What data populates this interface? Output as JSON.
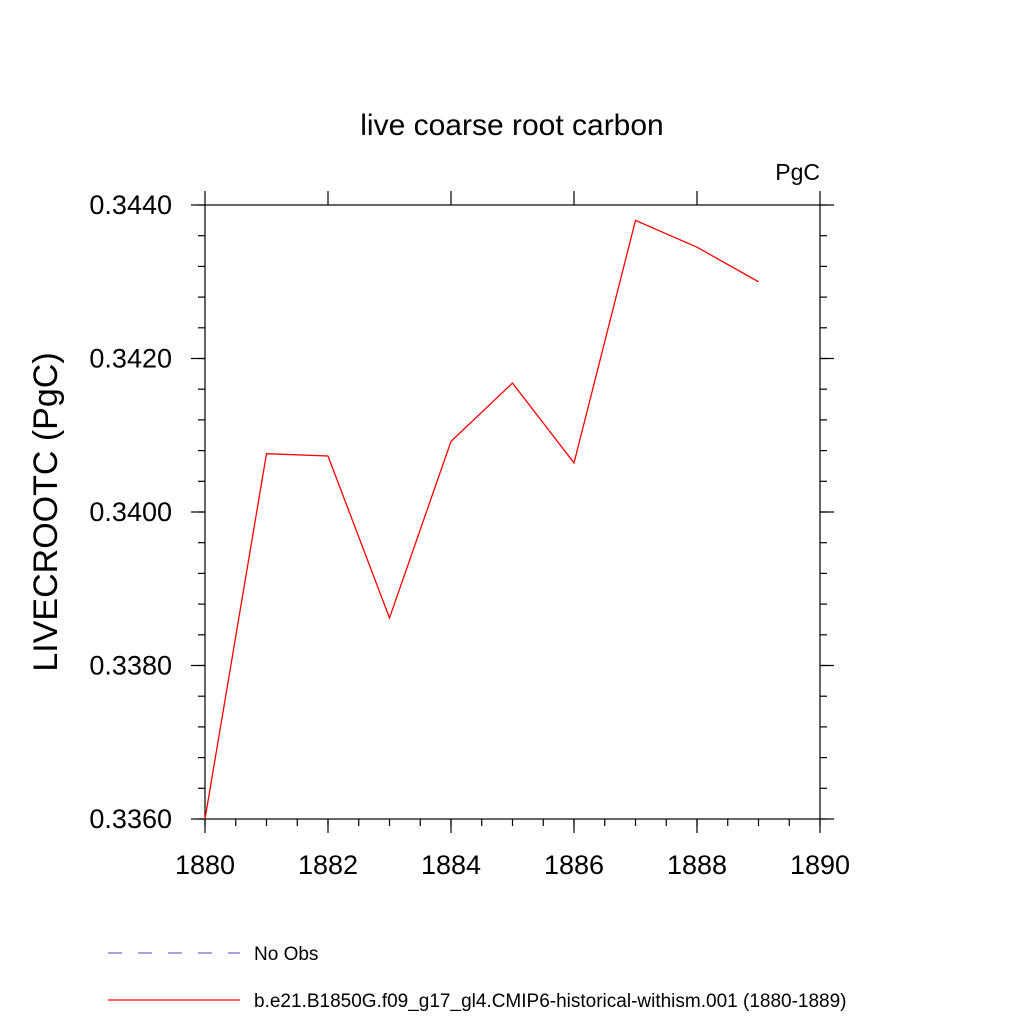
{
  "chart_data": {
    "type": "line",
    "title": "live coarse root carbon",
    "units_label": "PgC",
    "xlabel": "",
    "ylabel": "LIVECROOTC  (PgC)",
    "xlim": [
      1880,
      1890
    ],
    "ylim": [
      0.336,
      0.344
    ],
    "x_ticks": [
      1880,
      1882,
      1884,
      1886,
      1888,
      1890
    ],
    "x_tick_labels": [
      "1880",
      "1882",
      "1884",
      "1886",
      "1888",
      "1890"
    ],
    "y_ticks": [
      0.336,
      0.338,
      0.34,
      0.342,
      0.344
    ],
    "y_tick_labels": [
      "0.3360",
      "0.3380",
      "0.3400",
      "0.3420",
      "0.3440"
    ],
    "grid": false,
    "legend_position": "bottom",
    "series": [
      {
        "name": "b.e21.B1850G.f09_g17_gl4.CMIP6-historical-withism.001 (1880-1889)",
        "color": "#ff0000",
        "dash": "solid",
        "x": [
          1880,
          1881,
          1882,
          1883,
          1884,
          1885,
          1886,
          1887,
          1888,
          1889
        ],
        "y": [
          0.336,
          0.34076,
          0.34073,
          0.33862,
          0.34092,
          0.34168,
          0.34064,
          0.3438,
          0.34345,
          0.343
        ]
      }
    ],
    "legend": [
      {
        "label": "No Obs",
        "color": "#7b68c8",
        "dash": "dashed"
      },
      {
        "label": "b.e21.B1850G.f09_g17_gl4.CMIP6-historical-withism.001 (1880-1889)",
        "color": "#ff0000",
        "dash": "solid"
      }
    ]
  }
}
